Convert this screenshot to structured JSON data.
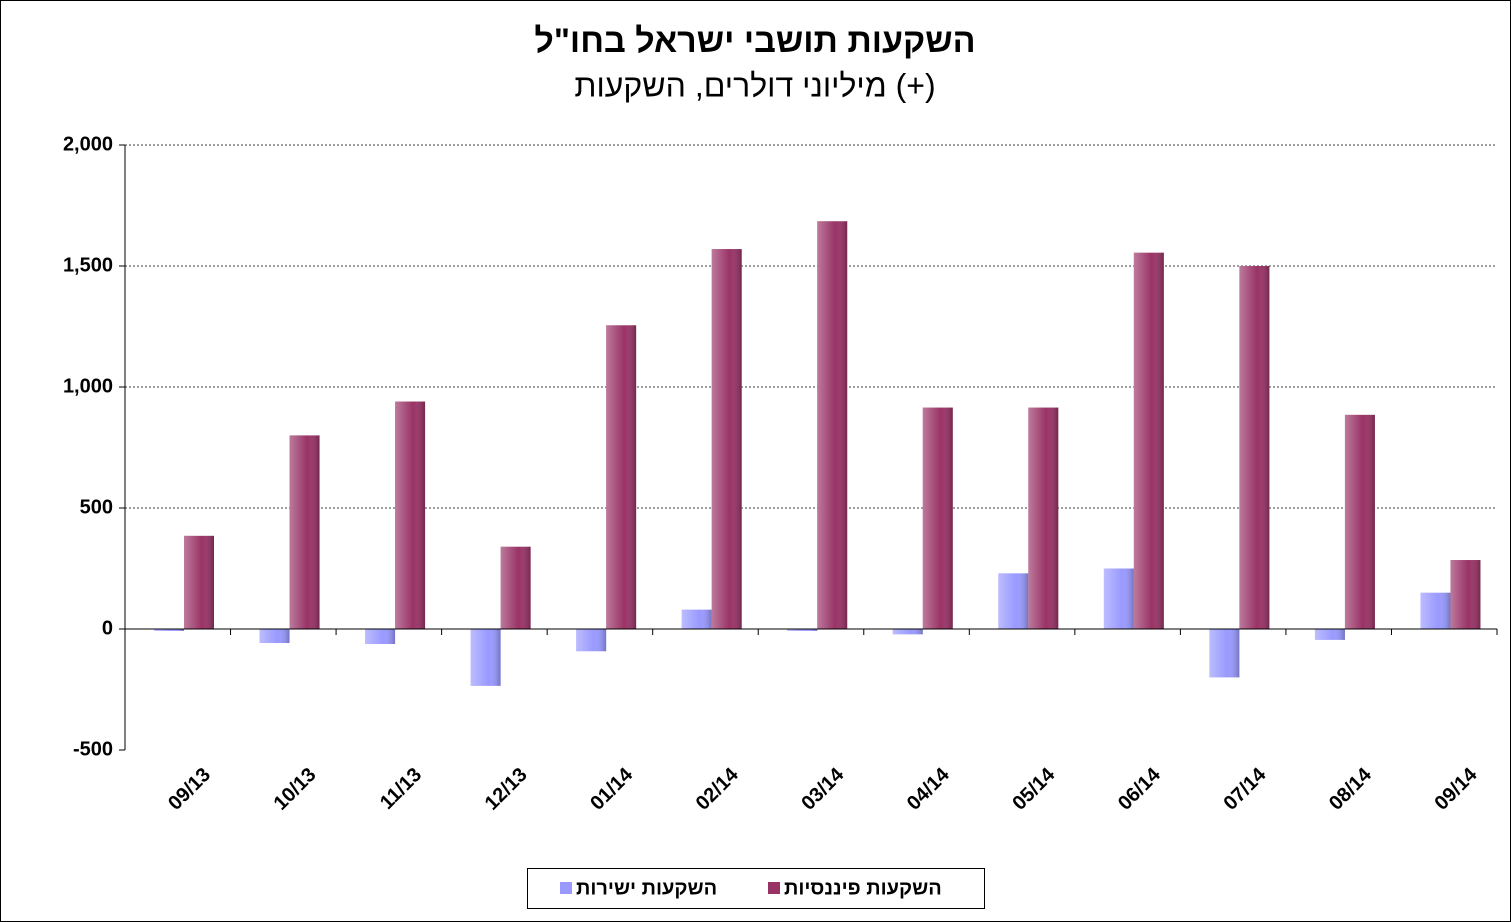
{
  "chart_data": {
    "type": "bar",
    "title": "השקעות תושבי ישראל בחו\"ל",
    "subtitle": "מיליוני דולרים, השקעות (+)",
    "categories": [
      "09/13",
      "10/13",
      "11/13",
      "12/13",
      "01/14",
      "02/14",
      "03/14",
      "04/14",
      "05/14",
      "06/14",
      "07/14",
      "08/14",
      "09/14"
    ],
    "series": [
      {
        "name": "השקעות ישירות",
        "color": "#9999ff",
        "values": [
          -8,
          -58,
          -62,
          -235,
          -92,
          80,
          -8,
          -22,
          230,
          250,
          -200,
          -45,
          150
        ]
      },
      {
        "name": "השקעות פיננסיות",
        "color": "#993366",
        "values": [
          385,
          800,
          940,
          340,
          1255,
          1570,
          1685,
          915,
          915,
          1555,
          1500,
          885,
          285
        ]
      }
    ],
    "ylim": [
      -500,
      2000
    ],
    "yticks": [
      -500,
      0,
      500,
      {
        "value": 1000,
        "label": "1,000"
      },
      {
        "value": 1500,
        "label": "1,500"
      },
      {
        "value": 2000,
        "label": "2,000"
      }
    ],
    "grid": true,
    "legend": "bottom"
  }
}
